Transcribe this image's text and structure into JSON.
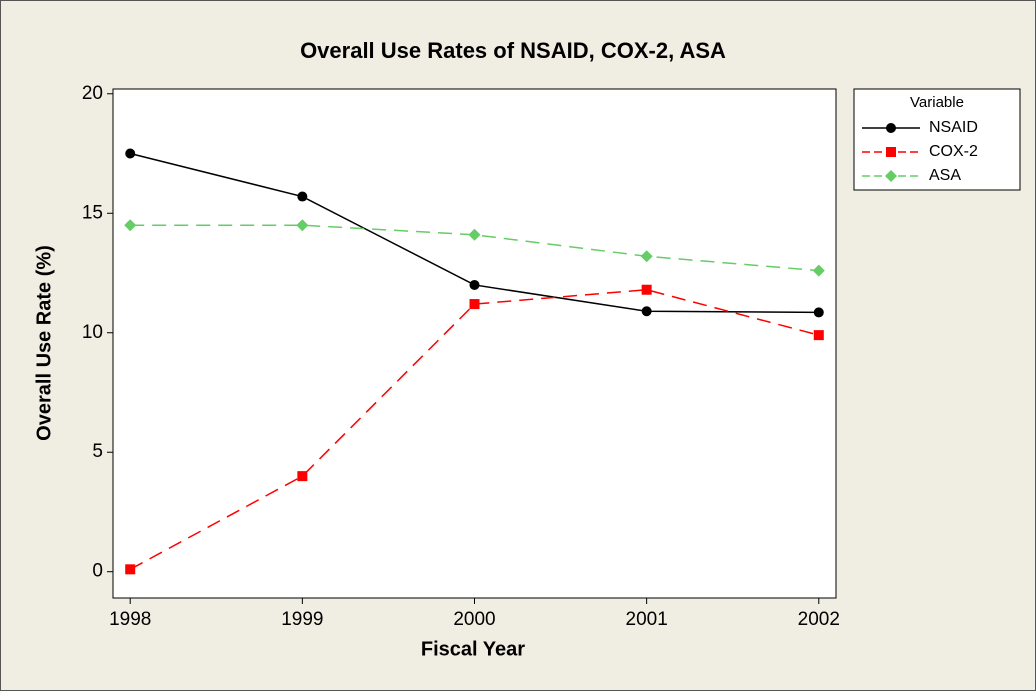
{
  "chart_data": {
    "type": "line",
    "title": "Overall Use Rates of NSAID, COX-2, ASA",
    "x_label": "Fiscal Year",
    "y_label": "Overall Use Rate (%)",
    "legend_title": "Variable",
    "x": [
      1998,
      1999,
      2000,
      2001,
      2002
    ],
    "xlim": [
      1997.9,
      2002.1
    ],
    "xticks": [
      1998,
      1999,
      2000,
      2001,
      2002
    ],
    "ylim": [
      -1.1,
      20.2
    ],
    "yticks": [
      0,
      5,
      10,
      15,
      20
    ],
    "grid": false,
    "legend": "right",
    "series": [
      {
        "name": "NSAID",
        "color": "#000000",
        "marker": "circle",
        "linestyle": "solid",
        "values": [
          17.5,
          15.7,
          12.0,
          10.9,
          10.85
        ]
      },
      {
        "name": "COX-2",
        "color": "#ff0000",
        "marker": "square",
        "linestyle": "dashed",
        "values": [
          0.1,
          4.0,
          11.2,
          11.8,
          9.9
        ]
      },
      {
        "name": "ASA",
        "color": "#66cc66",
        "marker": "diamond",
        "linestyle": "dashed",
        "values": [
          14.5,
          14.5,
          14.1,
          13.2,
          12.6
        ]
      }
    ]
  }
}
